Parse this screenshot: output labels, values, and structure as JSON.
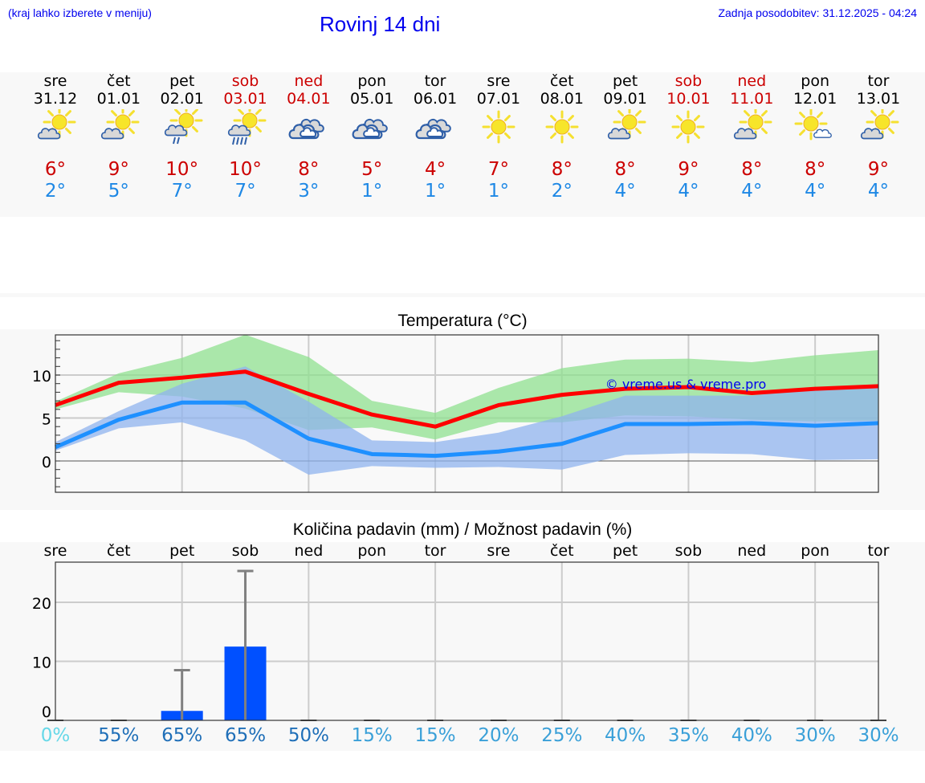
{
  "header": {
    "location_hint": "(kraj lahko izberete v meniju)",
    "title": "Rovinj 14 dni",
    "last_update": "Zadnja posodobitev: 31.12.2025 - 04:24"
  },
  "days": [
    {
      "name": "sre",
      "date": "31.12",
      "weekend": false,
      "icon": "partly-cloudy",
      "max": "6°",
      "min": "2°"
    },
    {
      "name": "čet",
      "date": "01.01",
      "weekend": false,
      "icon": "partly-cloudy",
      "max": "9°",
      "min": "5°"
    },
    {
      "name": "pet",
      "date": "02.01",
      "weekend": false,
      "icon": "partly-cloudy-light-rain",
      "max": "10°",
      "min": "7°"
    },
    {
      "name": "sob",
      "date": "03.01",
      "weekend": true,
      "icon": "partly-cloudy-rain",
      "max": "10°",
      "min": "7°"
    },
    {
      "name": "ned",
      "date": "04.01",
      "weekend": true,
      "icon": "overcast",
      "max": "8°",
      "min": "3°"
    },
    {
      "name": "pon",
      "date": "05.01",
      "weekend": false,
      "icon": "overcast",
      "max": "5°",
      "min": "1°"
    },
    {
      "name": "tor",
      "date": "06.01",
      "weekend": false,
      "icon": "overcast",
      "max": "4°",
      "min": "1°"
    },
    {
      "name": "sre",
      "date": "07.01",
      "weekend": false,
      "icon": "sunny",
      "max": "7°",
      "min": "1°"
    },
    {
      "name": "čet",
      "date": "08.01",
      "weekend": false,
      "icon": "sunny",
      "max": "8°",
      "min": "2°"
    },
    {
      "name": "pet",
      "date": "09.01",
      "weekend": false,
      "icon": "partly-cloudy",
      "max": "8°",
      "min": "4°"
    },
    {
      "name": "sob",
      "date": "10.01",
      "weekend": true,
      "icon": "sunny",
      "max": "9°",
      "min": "4°"
    },
    {
      "name": "ned",
      "date": "11.01",
      "weekend": true,
      "icon": "partly-cloudy",
      "max": "8°",
      "min": "4°"
    },
    {
      "name": "pon",
      "date": "12.01",
      "weekend": false,
      "icon": "mostly-sunny",
      "max": "8°",
      "min": "4°"
    },
    {
      "name": "tor",
      "date": "13.01",
      "weekend": false,
      "icon": "partly-cloudy",
      "max": "9°",
      "min": "4°"
    }
  ],
  "colors": {
    "link_blue": "#0000ee",
    "weekend_red": "#cc0000",
    "max_temp": "#cc0000",
    "min_temp": "#1e88e5",
    "max_line": "#ff0000",
    "min_line": "#1e90ff",
    "max_band": "#aee9ae",
    "min_band": "#aec8f2",
    "precip_bar": "#0050ff",
    "error_bar": "#808080"
  },
  "chart_data": [
    {
      "type": "line",
      "title": "Temperatura (°C)",
      "xlabel": "",
      "ylabel": "",
      "ylim": [
        -3.6,
        14.7
      ],
      "yticks": [
        0,
        5,
        10
      ],
      "grid": true,
      "watermark": "© vreme.us & vreme.pro",
      "categories": [
        "31.12",
        "01.01",
        "02.01",
        "03.01",
        "04.01",
        "05.01",
        "06.01",
        "07.01",
        "08.01",
        "09.01",
        "10.01",
        "11.01",
        "12.01",
        "13.01"
      ],
      "series": [
        {
          "name": "max",
          "color": "#ff0000",
          "values": [
            6.5,
            9.1,
            9.7,
            10.4,
            7.8,
            5.4,
            4.0,
            6.5,
            7.7,
            8.4,
            8.6,
            7.9,
            8.4,
            8.7
          ]
        },
        {
          "name": "min",
          "color": "#1e90ff",
          "values": [
            1.6,
            4.8,
            6.8,
            6.8,
            2.6,
            0.8,
            0.6,
            1.1,
            2.0,
            4.3,
            4.3,
            4.4,
            4.1,
            4.4
          ]
        },
        {
          "name": "max_range_upper",
          "values": [
            6.9,
            10.2,
            12.0,
            14.7,
            12.1,
            7.0,
            5.6,
            8.5,
            10.8,
            11.8,
            11.9,
            11.5,
            12.3,
            12.9
          ]
        },
        {
          "name": "max_range_lower",
          "values": [
            6.0,
            8.0,
            7.5,
            6.1,
            3.6,
            3.9,
            2.5,
            4.5,
            4.5,
            5.3,
            5.2,
            4.8,
            4.6,
            4.7
          ]
        },
        {
          "name": "min_range_upper",
          "values": [
            2.2,
            5.8,
            9.0,
            11.0,
            6.9,
            2.4,
            2.2,
            3.3,
            5.2,
            7.6,
            7.6,
            7.6,
            8.4,
            8.8
          ]
        },
        {
          "name": "min_range_lower",
          "values": [
            1.2,
            3.8,
            4.5,
            2.4,
            -1.6,
            -0.6,
            -0.8,
            -0.7,
            -1.0,
            0.7,
            0.9,
            0.8,
            0.1,
            0.2
          ]
        }
      ]
    },
    {
      "type": "bar",
      "title": "Količina padavin (mm) / Možnost padavin (%)",
      "xlabel": "",
      "ylabel": "",
      "ylim": [
        0,
        26.8
      ],
      "yticks": [
        0,
        10,
        20
      ],
      "grid": true,
      "categories": [
        "sre",
        "čet",
        "pet",
        "sob",
        "ned",
        "pon",
        "tor",
        "sre",
        "čet",
        "pet",
        "sob",
        "ned",
        "pon",
        "tor"
      ],
      "series": [
        {
          "name": "Količina padavin (mm)",
          "color": "#0050ff",
          "values": [
            0,
            0,
            1.6,
            12.5,
            0,
            0,
            0,
            0,
            0,
            0,
            0,
            0,
            0,
            0
          ]
        },
        {
          "name": "Zgornja meja (mm)",
          "color": "#808080",
          "values": [
            0,
            0,
            8.5,
            25.3,
            0,
            0,
            0,
            0,
            0,
            0,
            0,
            0,
            0,
            0
          ]
        }
      ],
      "probability": [
        {
          "label": "0%",
          "color": "#66d8e8"
        },
        {
          "label": "55%",
          "color": "#1f6fb8"
        },
        {
          "label": "65%",
          "color": "#1f6fb8"
        },
        {
          "label": "65%",
          "color": "#1f6fb8"
        },
        {
          "label": "50%",
          "color": "#1f6fb8"
        },
        {
          "label": "15%",
          "color": "#3aa0d8"
        },
        {
          "label": "15%",
          "color": "#3aa0d8"
        },
        {
          "label": "20%",
          "color": "#3aa0d8"
        },
        {
          "label": "25%",
          "color": "#3aa0d8"
        },
        {
          "label": "40%",
          "color": "#3aa0d8"
        },
        {
          "label": "35%",
          "color": "#3aa0d8"
        },
        {
          "label": "40%",
          "color": "#3aa0d8"
        },
        {
          "label": "30%",
          "color": "#3aa0d8"
        },
        {
          "label": "30%",
          "color": "#3aa0d8"
        }
      ]
    }
  ]
}
